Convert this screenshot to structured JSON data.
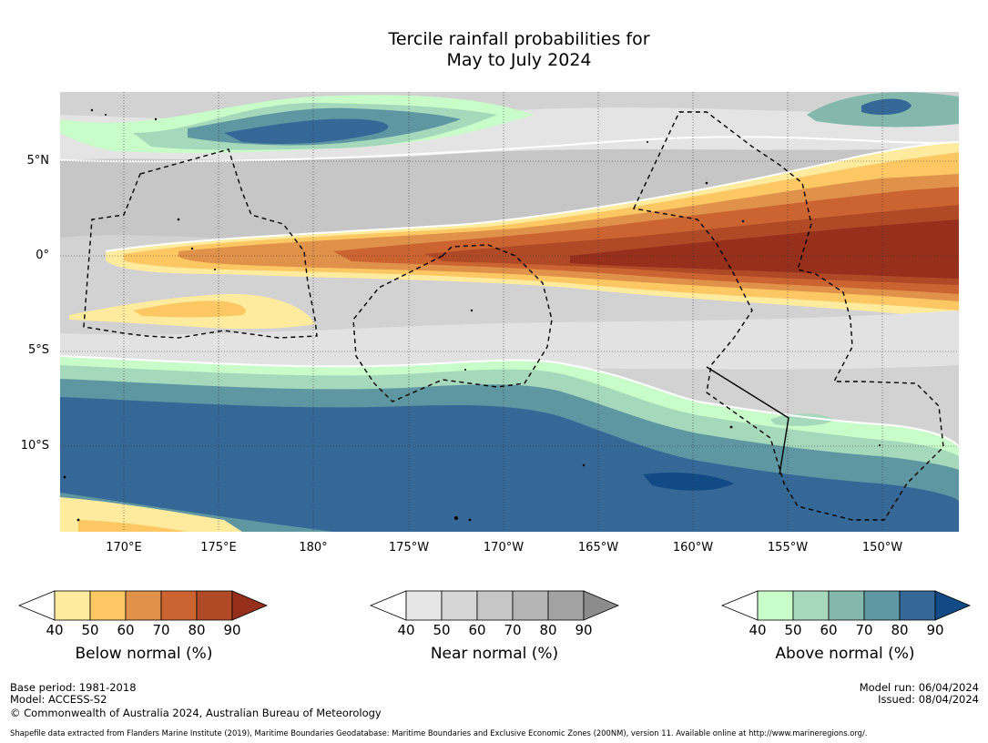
{
  "title": {
    "line1": "Tercile rainfall probabilities for",
    "line2": "May to July 2024"
  },
  "axes": {
    "y_labels": [
      "5°N",
      "0°",
      "5°S",
      "10°S"
    ],
    "x_labels": [
      "170°E",
      "175°E",
      "180°",
      "175°W",
      "170°W",
      "165°W",
      "160°W",
      "155°W",
      "150°W"
    ]
  },
  "legends": {
    "ticks": [
      "40",
      "50",
      "60",
      "70",
      "80",
      "90"
    ],
    "below": {
      "title": "Below normal (%)",
      "colors": [
        "#ffffff",
        "#ffeb9e",
        "#fdc864",
        "#e0914a",
        "#cc6432",
        "#b04a26",
        "#96301c"
      ]
    },
    "near": {
      "title": "Near normal (%)",
      "colors": [
        "#ffffff",
        "#e6e6e6",
        "#d6d6d6",
        "#c6c6c6",
        "#b4b4b4",
        "#a2a2a2",
        "#8c8c8c"
      ]
    },
    "above": {
      "title": "Above normal (%)",
      "colors": [
        "#ffffff",
        "#c8fcc8",
        "#a6d8bc",
        "#84b8ac",
        "#5e96a2",
        "#356896",
        "#124a86"
      ]
    }
  },
  "footer": {
    "base_period": "Base period: 1981-2018",
    "model": "Model: ACCESS-S2",
    "copyright": "© Commonwealth of Australia 2024, Australian Bureau of Meteorology",
    "model_run": "Model run: 06/04/2024",
    "issued": "Issued: 08/04/2024",
    "shapefile": "Shapefile data extracted from Flanders Marine Institute (2019), Maritime Boundaries Geodatabase: Maritime Boundaries and Exclusive Economic Zones (200NM), version 11. Available online at http://www.marineregions.org/."
  }
}
